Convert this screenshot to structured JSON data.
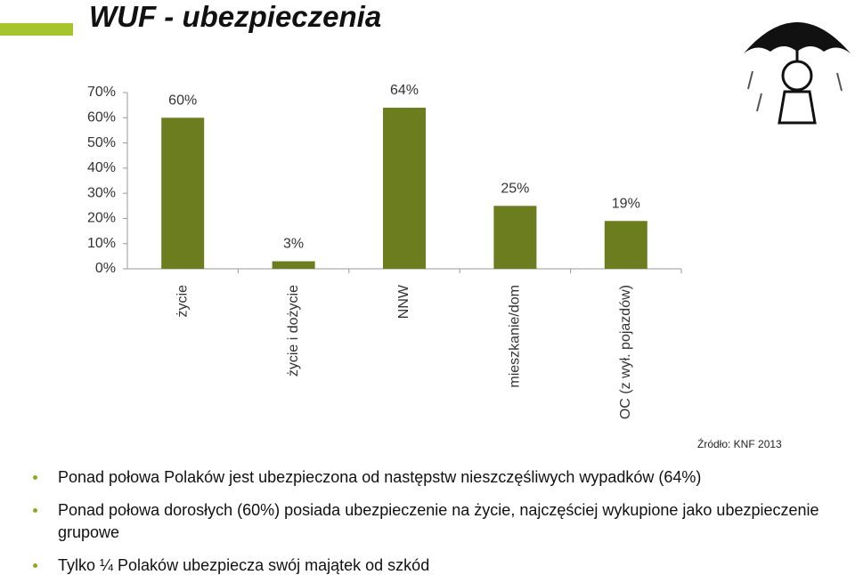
{
  "title": "WUF - ubezpieczenia",
  "chart_data": {
    "type": "bar",
    "categories": [
      "życie",
      "życie i dożycie",
      "NNW",
      "mieszkanie/dom",
      "OC (z wył. pojazdów)"
    ],
    "values": [
      60,
      3,
      64,
      25,
      19
    ],
    "value_labels": [
      "60%",
      "3%",
      "64%",
      "25%",
      "19%"
    ],
    "color": "#6b7d1f",
    "ylim": [
      0,
      70
    ],
    "yticks": [
      {
        "value": 0,
        "label": "0%"
      },
      {
        "value": 10,
        "label": "10%"
      },
      {
        "value": 20,
        "label": "20%"
      },
      {
        "value": 30,
        "label": "30%"
      },
      {
        "value": 40,
        "label": "40%"
      },
      {
        "value": 50,
        "label": "50%"
      },
      {
        "value": 60,
        "label": "60%"
      },
      {
        "value": 70,
        "label": "70%"
      }
    ],
    "grid": false
  },
  "source": "Źródło: KNF 2013",
  "bullets": [
    "Ponad połowa Polaków jest ubezpieczona od następstw nieszczęśliwych wypadków (64%)",
    "Ponad połowa dorosłych (60%) posiada ubezpieczenie na życie, najczęściej wykupione jako ubezpieczenie grupowe",
    "Tylko ¼ Polaków ubezpiecza swój majątek od szkód"
  ]
}
